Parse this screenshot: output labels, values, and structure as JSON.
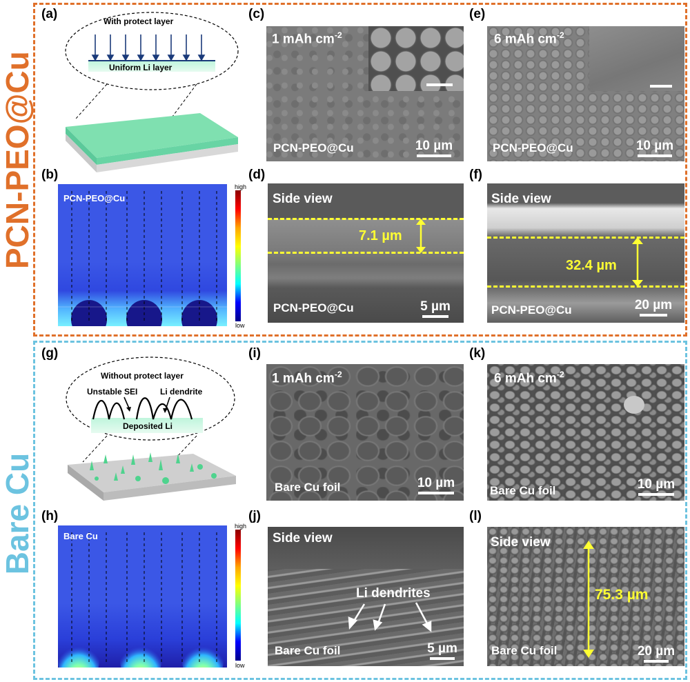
{
  "sections": {
    "top_label": "PCN-PEO@Cu",
    "bottom_label": "Bare Cu",
    "top_color": "#e0702a",
    "bottom_color": "#6cc3e0"
  },
  "panels": {
    "a": {
      "label": "(a)",
      "bubble_title": "With protect layer",
      "layer_text": "Uniform Li layer"
    },
    "b": {
      "label": "(b)",
      "sim_title": "PCN-PEO@Cu",
      "cbar_high": "high",
      "cbar_low": "low"
    },
    "c": {
      "label": "(c)",
      "capacity": "1 mAh cm",
      "sup": "-2",
      "sample": "PCN-PEO@Cu",
      "scale": "10 µm"
    },
    "d": {
      "label": "(d)",
      "view": "Side view",
      "thickness": "7.1 µm",
      "sample": "PCN-PEO@Cu",
      "scale": "5 µm"
    },
    "e": {
      "label": "(e)",
      "capacity": "6 mAh cm",
      "sup": "-2",
      "sample": "PCN-PEO@Cu",
      "scale": "10 µm"
    },
    "f": {
      "label": "(f)",
      "view": "Side view",
      "thickness": "32.4 µm",
      "sample": "PCN-PEO@Cu",
      "scale": "20 µm"
    },
    "g": {
      "label": "(g)",
      "bubble_title": "Without protect layer",
      "sei": "Unstable SEI",
      "dendrite": "Li dendrite",
      "layer_text": "Deposited Li"
    },
    "h": {
      "label": "(h)",
      "sim_title": "Bare Cu",
      "cbar_high": "high",
      "cbar_low": "low"
    },
    "i": {
      "label": "(i)",
      "capacity": "1 mAh cm",
      "sup": "-2",
      "sample": "Bare Cu foil",
      "scale": "10 µm"
    },
    "j": {
      "label": "(j)",
      "view": "Side view",
      "annotation": "Li dendrites",
      "sample": "Bare Cu foil",
      "scale": "5 µm"
    },
    "k": {
      "label": "(k)",
      "capacity": "6 mAh cm",
      "sup": "-2",
      "sample": "Bare Cu foil",
      "scale": "10 µm"
    },
    "l": {
      "label": "(l)",
      "view": "Side view",
      "thickness": "75.3 µm",
      "sample": "Bare Cu foil",
      "scale": "20 µm"
    }
  }
}
